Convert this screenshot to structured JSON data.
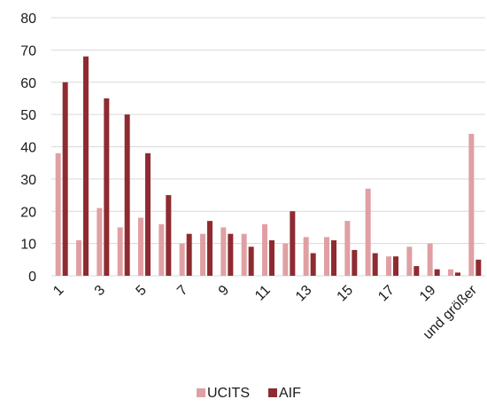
{
  "chart_data": {
    "type": "bar",
    "categories": [
      "1",
      "2",
      "3",
      "4",
      "5",
      "6",
      "7",
      "8",
      "9",
      "10",
      "11",
      "12",
      "13",
      "14",
      "15",
      "16",
      "17",
      "18",
      "19",
      "20",
      "und größer"
    ],
    "category_labels_shown": [
      "1",
      "",
      "3",
      "",
      "5",
      "",
      "7",
      "",
      "9",
      "",
      "11",
      "",
      "13",
      "",
      "15",
      "",
      "17",
      "",
      "19",
      "",
      "und größer"
    ],
    "series": [
      {
        "name": "UCITS",
        "color": "#e0a0a3",
        "values": [
          38,
          11,
          21,
          15,
          18,
          16,
          10,
          13,
          15,
          13,
          16,
          10,
          12,
          12,
          17,
          27,
          6,
          9,
          10,
          2,
          44
        ]
      },
      {
        "name": "AIF",
        "color": "#8e2b31",
        "values": [
          60,
          68,
          55,
          50,
          38,
          25,
          13,
          17,
          13,
          9,
          11,
          20,
          7,
          11,
          8,
          7,
          6,
          3,
          2,
          1,
          5
        ]
      }
    ],
    "yticks": [
      "0",
      "10",
      "20",
      "30",
      "40",
      "50",
      "60",
      "70",
      "80"
    ],
    "ylim": [
      0,
      80
    ],
    "grid": true,
    "gridline_color": "#d9d9d9",
    "legend_position": "bottom"
  }
}
